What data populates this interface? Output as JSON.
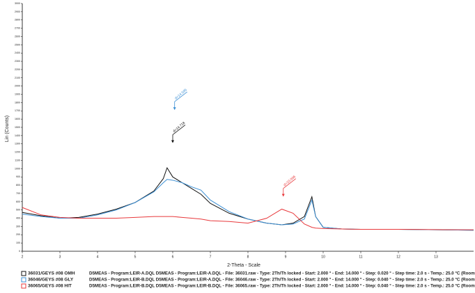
{
  "chart_data": {
    "type": "line",
    "x_label": "2-Theta - Scale",
    "y_label": "Lin (Counts)",
    "x": [
      2,
      2.5,
      3,
      3.5,
      4,
      4.5,
      5,
      5.5,
      5.75,
      5.85,
      6,
      6.25,
      6.5,
      6.75,
      7,
      7.5,
      8,
      8.5,
      8.9,
      9.2,
      9.5,
      9.7,
      9.8,
      10,
      10.5,
      11,
      12,
      13,
      14
    ],
    "series": [
      {
        "name": "36031/GEYS #08 OMH",
        "color": "#111111",
        "description": "D5MEAS - Program:LEIR-A.DQL D5MEAS - Program:LEIR-A.DQL - File: 36031.raw - Type: 2Th/Th locked - Start: 2.000 ° - End: 14.000 ° - Step: 0.020 ° - Step time: 2.0 s - Temp.: 25.0 °C (Room",
        "values": [
          470,
          430,
          400,
          410,
          450,
          510,
          590,
          730,
          880,
          1010,
          900,
          830,
          760,
          690,
          580,
          460,
          390,
          340,
          320,
          340,
          420,
          660,
          420,
          290,
          270,
          265,
          265,
          260,
          255
        ]
      },
      {
        "name": "36046/GEYS #08 GLY",
        "color": "#3b8fd4",
        "description": "D5MEAS - Program:LEIR-B.DQL D5MEAS - Program:LEIR-A.DQL - File: 36046.raw - Type: 2Th/Th locked - Start: 2.000 ° - End: 14.000 ° - Step: 0.040 ° - Step time: 2.0 s - Temp.: 25.0 °C (Room",
        "values": [
          450,
          420,
          400,
          400,
          440,
          500,
          590,
          720,
          830,
          870,
          860,
          830,
          780,
          740,
          620,
          480,
          390,
          340,
          320,
          330,
          390,
          620,
          420,
          290,
          270,
          265,
          265,
          260,
          255
        ]
      },
      {
        "name": "36065/GEYS #08 HIT",
        "color": "#e8383b",
        "description": "D5MEAS - Program:LEIR-B.DQL D5MEAS - Program:LEIR-B.DQL - File: 36065.raw - Type: 2Th/Th locked - Start: 2.000 ° - End: 14.000 ° - Step: 0.040 ° - Step time: 2.0 s - Temp.: 25.0 °C (Room",
        "values": [
          530,
          440,
          410,
          400,
          400,
          400,
          410,
          420,
          420,
          420,
          420,
          410,
          400,
          390,
          370,
          360,
          340,
          400,
          510,
          460,
          330,
          290,
          280,
          275,
          270,
          265,
          265,
          262,
          260
        ]
      }
    ],
    "annotations": [
      {
        "text": "d=14.595",
        "x": 6.05,
        "y": 1710,
        "color": "#3b8fd4"
      },
      {
        "text": "d=14.718",
        "x": 6.0,
        "y": 1310,
        "color": "#111111"
      },
      {
        "text": "d=10.006",
        "x": 8.94,
        "y": 660,
        "color": "#e8383b"
      }
    ],
    "xlim": [
      2,
      14
    ],
    "ylim": [
      0,
      3000
    ],
    "xticks": [
      2,
      3,
      4,
      5,
      6,
      7,
      8,
      9,
      10,
      11,
      12,
      13
    ],
    "yticks": [
      0,
      100,
      200,
      300,
      400,
      500,
      600,
      700,
      800,
      900,
      1000,
      1100,
      1200,
      1300,
      1400,
      1500,
      1600,
      1700,
      1800,
      1900,
      2000,
      2100,
      2200,
      2300,
      2400,
      2500,
      2600,
      2700,
      2800,
      2900,
      3000
    ]
  }
}
